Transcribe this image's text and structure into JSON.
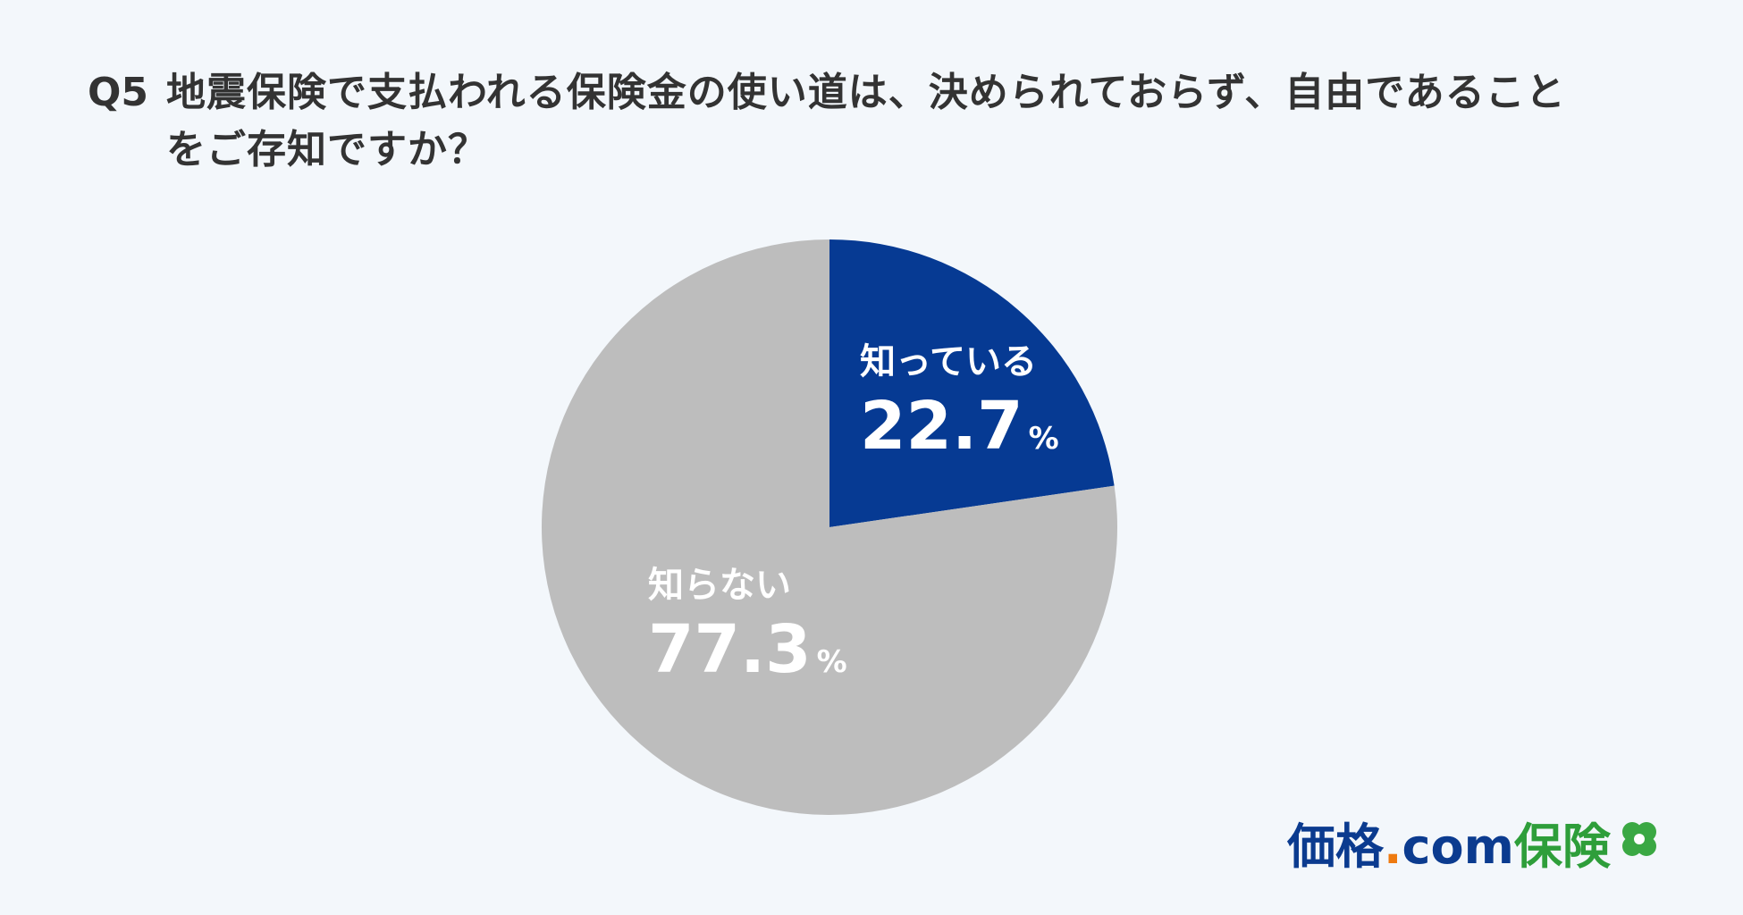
{
  "question": {
    "number": "Q5",
    "text": "地震保険で支払われる保険金の使い道は、決められておらず、自由であることをご存知ですか？"
  },
  "chart_data": {
    "type": "pie",
    "categories": [
      "知っている",
      "知らない"
    ],
    "values": [
      22.7,
      77.3
    ],
    "value_labels": [
      "22.7",
      "77.3"
    ],
    "unit": "%",
    "colors": [
      "#063a93",
      "#bdbdbd"
    ],
    "title": "",
    "legend": "none"
  },
  "logo": {
    "part1": "価格",
    "dot": ".",
    "part2": "com",
    "part3": "保険",
    "icon": "clover-icon",
    "colors": {
      "brand_blue": "#0b3b8f",
      "dot_orange": "#ee7a10",
      "hoken_green": "#2e9e3a"
    }
  },
  "colors": {
    "background": "#f3f7fb",
    "text": "#333333"
  }
}
